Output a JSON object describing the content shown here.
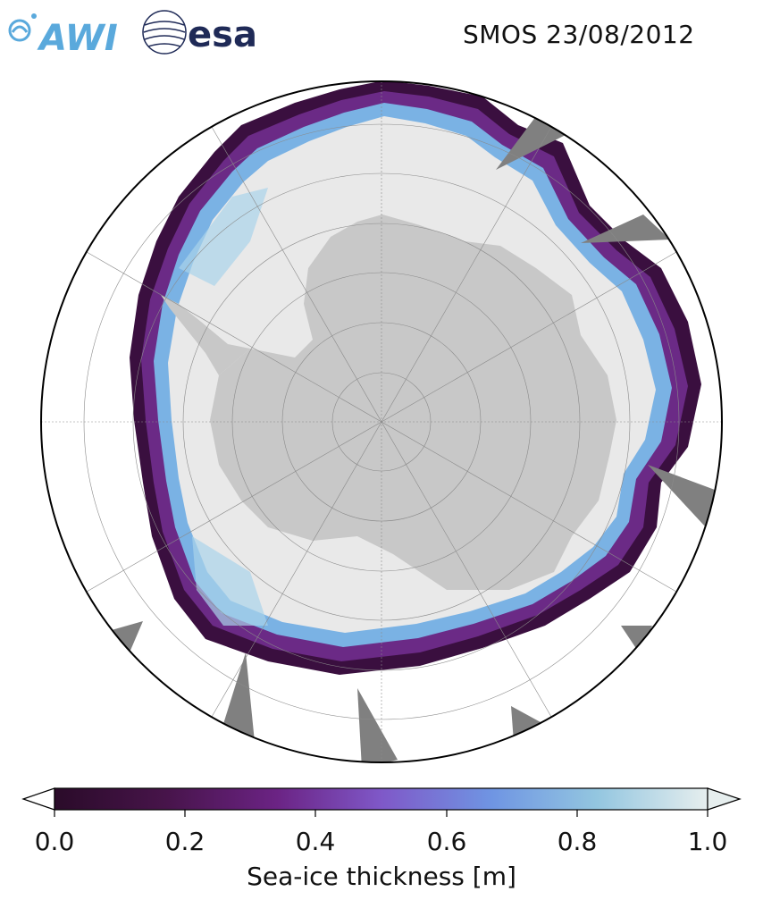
{
  "header": {
    "title": "SMOS 23/08/2012",
    "logo_awi": "AWI",
    "logo_esa": "esa"
  },
  "map": {
    "projection": "south-polar-stereographic",
    "land_color": "#c8c8c8",
    "nodata_color": "#808080",
    "graticule": true
  },
  "colorbar": {
    "label": "Sea-ice thickness [m]",
    "min": 0.0,
    "max": 1.0,
    "extend": "both",
    "ticks": [
      "0.0",
      "0.2",
      "0.4",
      "0.6",
      "0.8",
      "1.0"
    ],
    "colormap": [
      "#2a0b29",
      "#47144a",
      "#6b2384",
      "#7f58c8",
      "#6f95e3",
      "#93c6e0",
      "#e6eeee"
    ]
  }
}
